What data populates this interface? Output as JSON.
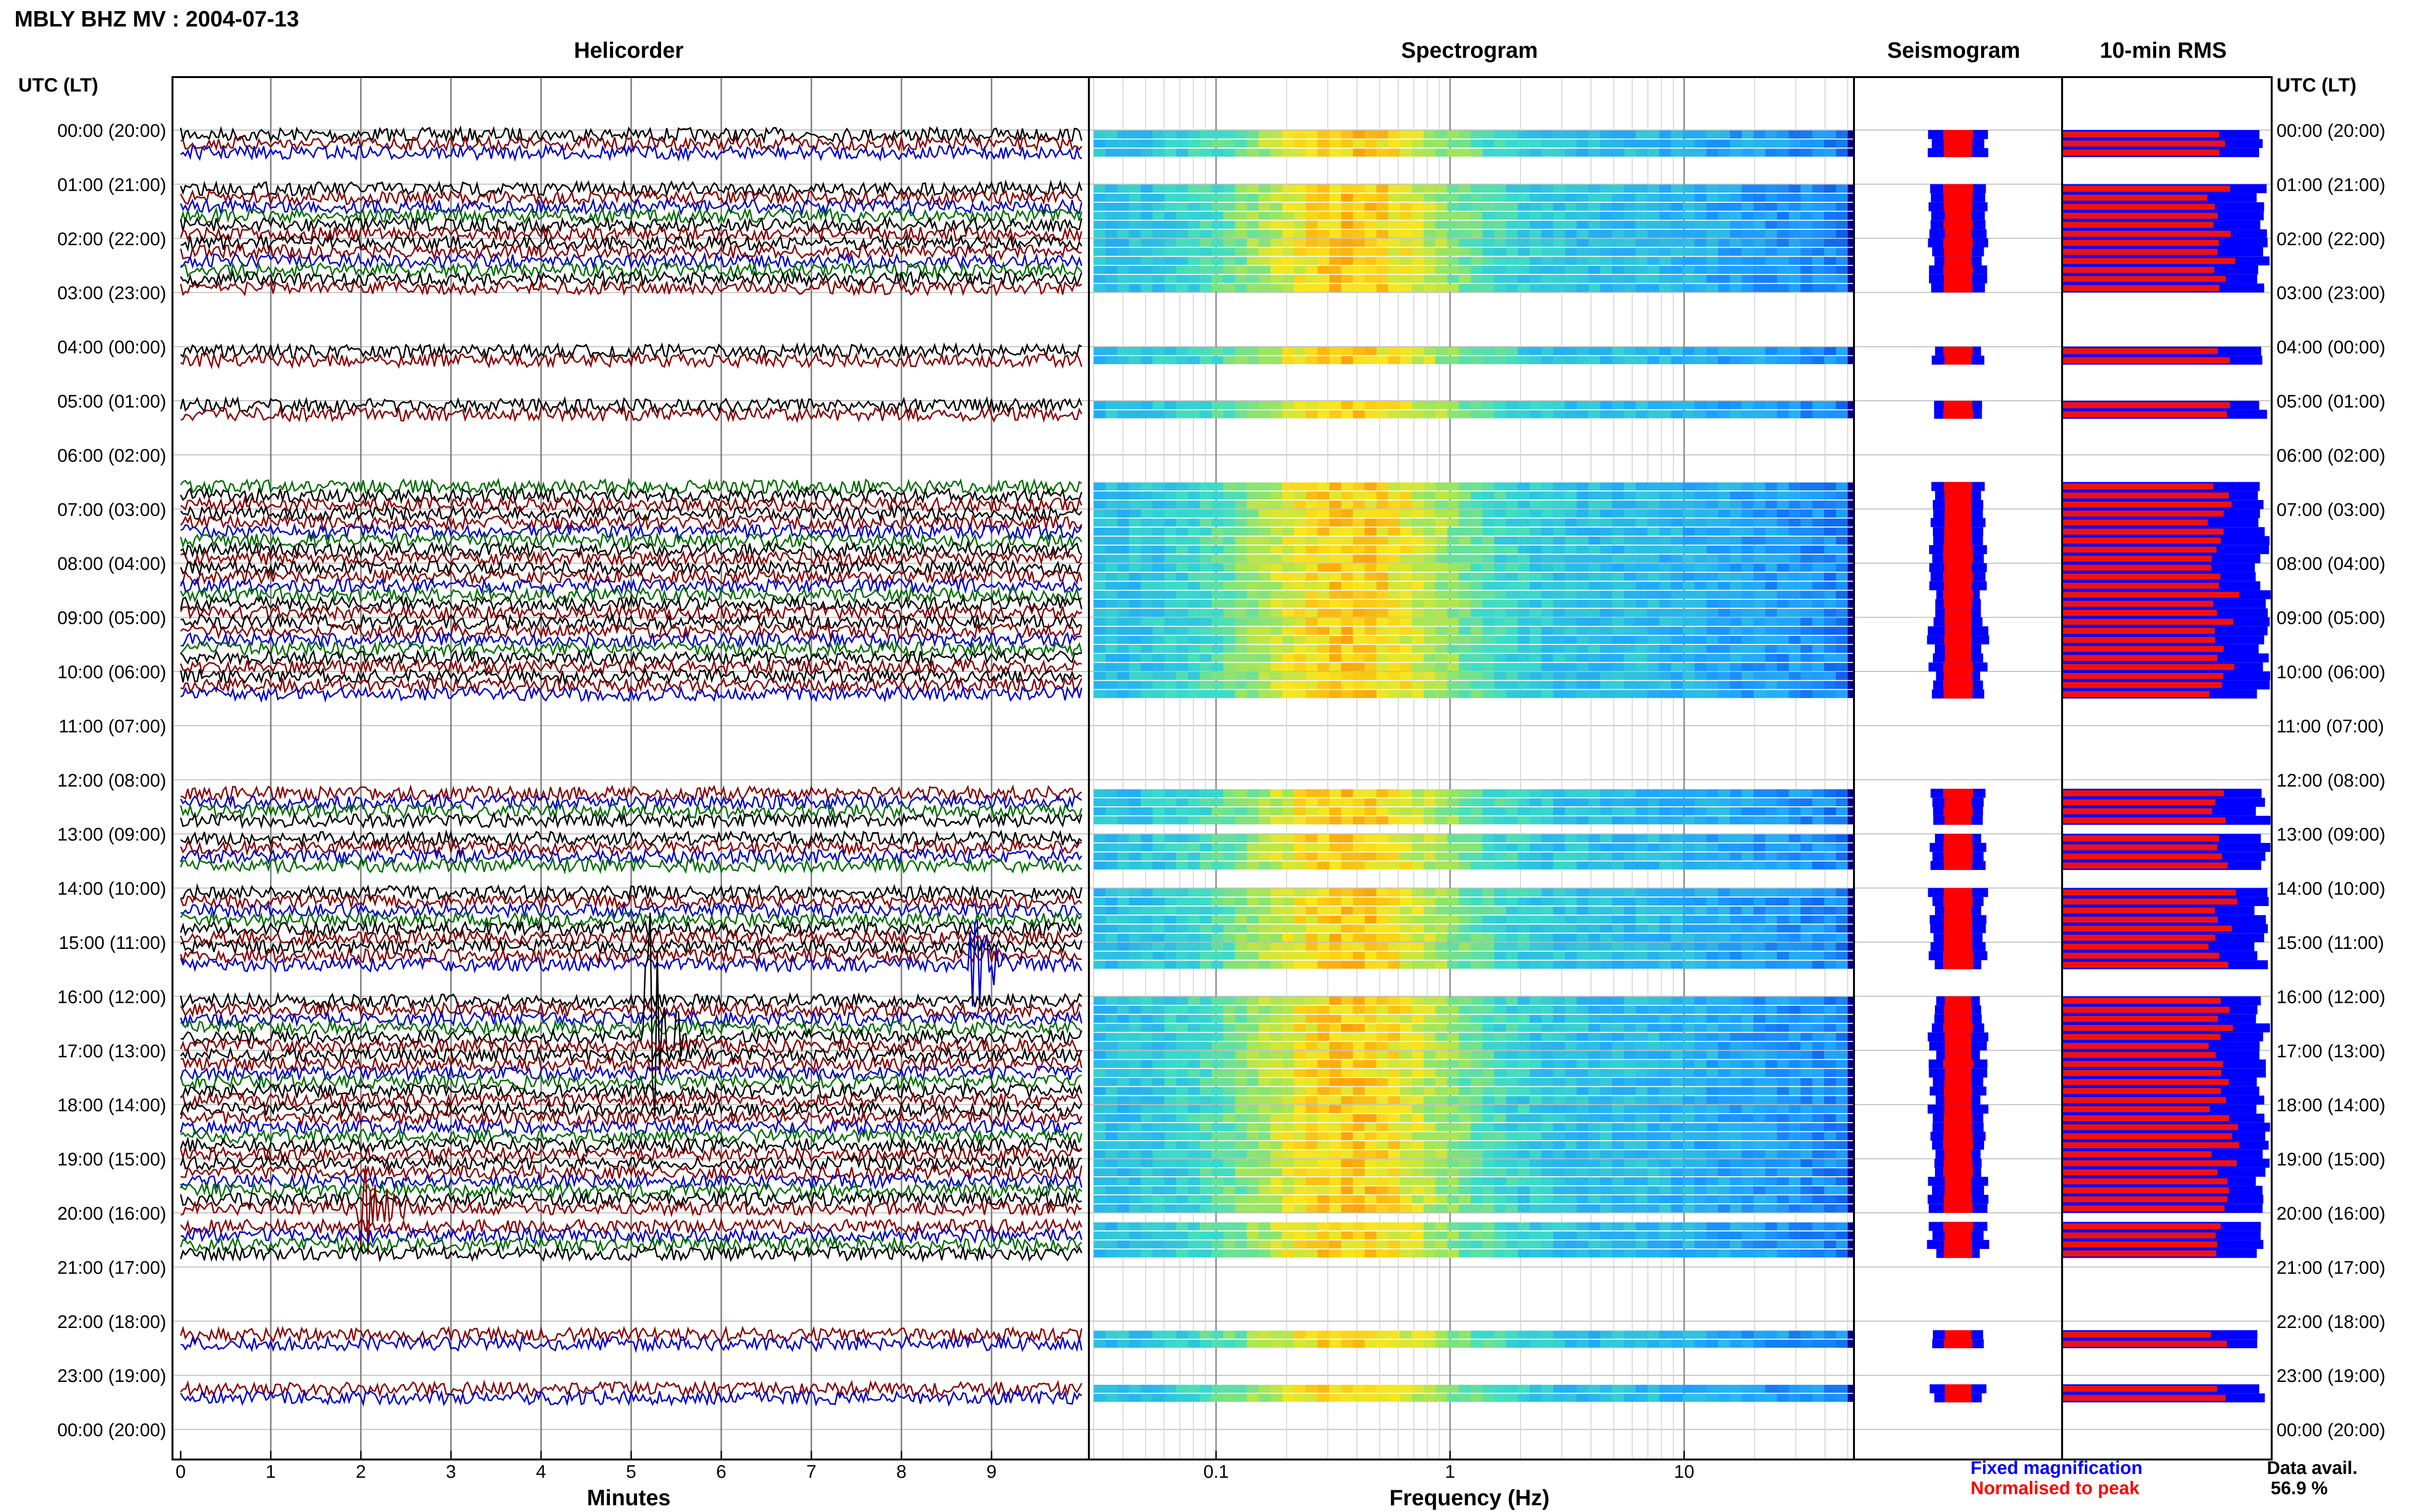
{
  "header": {
    "title": "MBLY BHZ MV : 2004-07-13"
  },
  "panels": {
    "helicorder": "Helicorder",
    "spectrogram": "Spectrogram",
    "seismogram": "Seismogram",
    "rms": "10-min RMS"
  },
  "axes": {
    "left_label": "UTC (LT)",
    "right_label": "UTC (LT)",
    "hours": [
      "00:00 (20:00)",
      "01:00 (21:00)",
      "02:00 (22:00)",
      "03:00 (23:00)",
      "04:00 (00:00)",
      "05:00 (01:00)",
      "06:00 (02:00)",
      "07:00 (03:00)",
      "08:00 (04:00)",
      "09:00 (05:00)",
      "10:00 (06:00)",
      "11:00 (07:00)",
      "12:00 (08:00)",
      "13:00 (09:00)",
      "14:00 (10:00)",
      "15:00 (11:00)",
      "16:00 (12:00)",
      "17:00 (13:00)",
      "18:00 (14:00)",
      "19:00 (15:00)",
      "20:00 (16:00)",
      "21:00 (17:00)",
      "22:00 (18:00)",
      "23:00 (19:00)",
      "00:00 (20:00)"
    ],
    "minutes_label": "Minutes",
    "minute_ticks": [
      "0",
      "1",
      "2",
      "3",
      "4",
      "5",
      "6",
      "7",
      "8",
      "9"
    ],
    "frequency_label": "Frequency (Hz)",
    "frequency_ticks": [
      "0.1",
      "1",
      "10"
    ]
  },
  "legend": {
    "fixed": "Fixed magnification",
    "normalised": "Normalised to peak",
    "fixed_color": "#0000ff",
    "normalised_color": "#ff0000"
  },
  "availability": {
    "label": "Data avail.",
    "value": "56.9 %"
  },
  "chart_data": {
    "type": "helicorder",
    "trace_colors": [
      "#000000",
      "#8b0000",
      "#0000cd",
      "#007000"
    ],
    "hours_with_data": [
      {
        "hour": 0,
        "segments": [
          0,
          1,
          2
        ]
      },
      {
        "hour": 1,
        "segments": [
          0,
          1,
          2,
          3,
          4,
          5
        ]
      },
      {
        "hour": 2,
        "segments": [
          0,
          1,
          2,
          3,
          4,
          5
        ]
      },
      {
        "hour": 4,
        "segments": [
          0,
          1
        ]
      },
      {
        "hour": 5,
        "segments": [
          0,
          1
        ]
      },
      {
        "hour": 6,
        "segments": [
          3,
          4,
          5
        ]
      },
      {
        "hour": 7,
        "segments": [
          0,
          1,
          2,
          3,
          4,
          5
        ]
      },
      {
        "hour": 8,
        "segments": [
          0,
          1,
          2,
          3,
          4,
          5
        ]
      },
      {
        "hour": 9,
        "segments": [
          0,
          1,
          2,
          3,
          4,
          5
        ]
      },
      {
        "hour": 10,
        "segments": [
          0,
          1,
          2
        ]
      },
      {
        "hour": 12,
        "segments": [
          1,
          2,
          3,
          4
        ]
      },
      {
        "hour": 13,
        "segments": [
          0,
          1,
          2,
          3
        ]
      },
      {
        "hour": 14,
        "segments": [
          0,
          1,
          2,
          3,
          4,
          5
        ]
      },
      {
        "hour": 15,
        "segments": [
          0,
          1,
          2
        ]
      },
      {
        "hour": 16,
        "segments": [
          0,
          1,
          2,
          3,
          4,
          5
        ]
      },
      {
        "hour": 17,
        "segments": [
          0,
          1,
          2,
          3,
          4,
          5
        ]
      },
      {
        "hour": 18,
        "segments": [
          0,
          1,
          2,
          3,
          4,
          5
        ]
      },
      {
        "hour": 19,
        "segments": [
          0,
          1,
          2,
          3,
          4,
          5
        ]
      },
      {
        "hour": 20,
        "segments": [
          1,
          2,
          3,
          4
        ]
      },
      {
        "hour": 22,
        "segments": [
          1,
          2
        ]
      },
      {
        "hour": 23,
        "segments": [
          1,
          2
        ]
      }
    ],
    "events": [
      {
        "hour": 15,
        "segment": 2,
        "minute": 8.8,
        "amp": 2.2
      },
      {
        "hour": 16,
        "segment": 4,
        "minute": 5.2,
        "amp": 5.5
      },
      {
        "hour": 19,
        "segment": 5,
        "minute": 2.0,
        "amp": 3.0
      }
    ],
    "frequency_range_hz": [
      0.03,
      50
    ],
    "rms_fixed_ratio": 0.8
  }
}
